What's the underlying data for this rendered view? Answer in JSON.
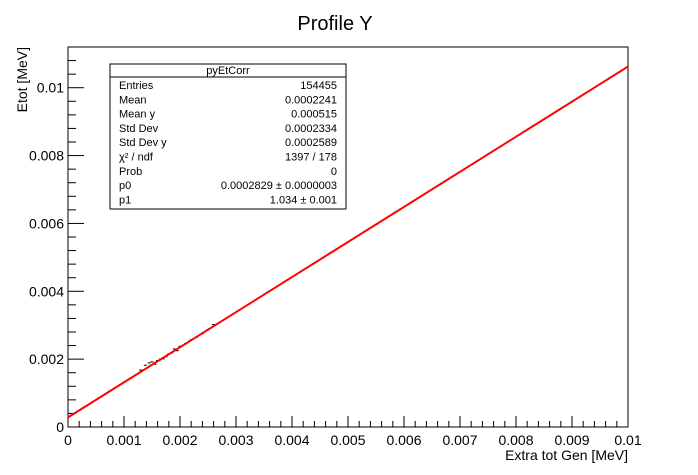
{
  "chart_data": {
    "type": "line",
    "title": "Profile Y",
    "xlabel": "Extra tot Gen [MeV]",
    "ylabel": "Etot [MeV]",
    "xlim": [
      0,
      0.01
    ],
    "ylim": [
      0,
      0.0112
    ],
    "x_ticks": [
      0,
      0.001,
      0.002,
      0.003,
      0.004,
      0.005,
      0.006,
      0.007,
      0.008,
      0.009,
      0.01
    ],
    "x_tick_labels": [
      "0",
      "0.001",
      "0.002",
      "0.003",
      "0.004",
      "0.005",
      "0.006",
      "0.007",
      "0.008",
      "0.009",
      "0.01"
    ],
    "y_ticks": [
      0,
      0.002,
      0.004,
      0.006,
      0.008,
      0.01
    ],
    "y_tick_labels": [
      "0",
      "0.002",
      "0.004",
      "0.006",
      "0.008",
      "0.01"
    ],
    "grid": false,
    "series": [
      {
        "color": "#000000",
        "style": "points",
        "x": [
          0.0013,
          0.00138,
          0.00145,
          0.0015,
          0.00155,
          0.0016,
          0.00165,
          0.0017,
          0.00175,
          0.0018,
          0.00185,
          0.0019,
          0.00195,
          0.002,
          0.0021,
          0.0022,
          0.0023,
          0.0024,
          0.0025,
          0.0026
        ],
        "y": [
          0.00168,
          0.00182,
          0.00189,
          0.00192,
          0.00185,
          0.00196,
          0.002,
          0.00201,
          0.00207,
          0.00215,
          0.00218,
          0.0023,
          0.00225,
          0.00238,
          0.00246,
          0.00257,
          0.00265,
          0.00275,
          0.00287,
          0.00302
        ]
      },
      {
        "color": "#ff0000",
        "style": "line",
        "x": [
          0,
          0.01
        ],
        "y": [
          0.0002829,
          0.0106229
        ]
      }
    ],
    "stats_box": {
      "title": "pyEtCorr",
      "rows": [
        {
          "label": "Entries",
          "value": "154455"
        },
        {
          "label": "Mean",
          "value": "0.0002241"
        },
        {
          "label": "Mean y",
          "value": "0.000515"
        },
        {
          "label": "Std Dev",
          "value": "0.0002334"
        },
        {
          "label": "Std Dev y",
          "value": "0.0002589"
        },
        {
          "label": "χ² / ndf",
          "value": "1397 / 178"
        },
        {
          "label": "Prob",
          "value": "0"
        },
        {
          "label": "p0",
          "value": "0.0002829 ± 0.0000003"
        },
        {
          "label": "p1",
          "value": "1.034 ± 0.001"
        }
      ]
    }
  }
}
